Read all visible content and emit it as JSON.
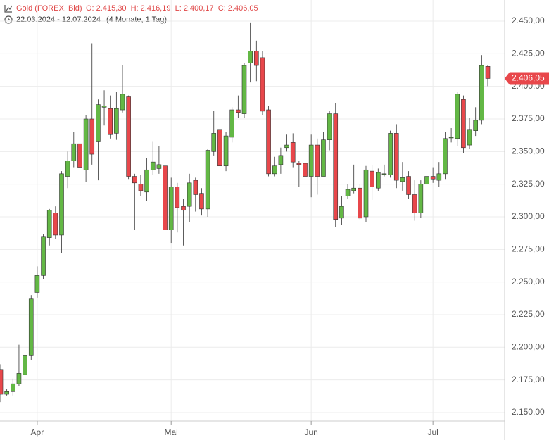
{
  "chart_data": {
    "type": "candlestick",
    "header": {
      "instrument": "Gold (FOREX, Bid)",
      "ohlc": "O: 2.415,30  H: 2.416,19  L: 2.400,17  C: 2.406,05",
      "range": "22.03.2024 - 12.07.2024",
      "duration": "(4 Monate, 1 Tag)"
    },
    "categories": [
      null,
      null,
      null,
      null,
      null,
      null,
      "Apr",
      null,
      null,
      null,
      null,
      null,
      null,
      null,
      null,
      null,
      null,
      null,
      null,
      null,
      null,
      null,
      null,
      null,
      null,
      null,
      null,
      null,
      "Mai",
      null,
      null,
      null,
      null,
      null,
      null,
      null,
      null,
      null,
      null,
      null,
      null,
      null,
      null,
      null,
      null,
      null,
      null,
      null,
      null,
      null,
      null,
      "Jun",
      null,
      null,
      null,
      null,
      null,
      null,
      null,
      null,
      null,
      null,
      null,
      null,
      null,
      null,
      null,
      null,
      null,
      null,
      null,
      "Jul",
      null,
      null,
      null,
      null,
      null,
      null,
      null,
      null,
      null
    ],
    "open": [
      2183,
      2164,
      2166,
      2172,
      2179,
      2194,
      2242,
      2255,
      2284,
      2303,
      2286,
      2331,
      2343,
      2356,
      2336,
      2375,
      2358,
      2384,
      2383,
      2364,
      2382,
      2392,
      2331,
      2325,
      2319,
      2336,
      2337,
      2339,
      2290,
      2323,
      2308,
      2308,
      2328,
      2318,
      2306,
      2350,
      2367,
      2339,
      2361,
      2382,
      2379,
      2418,
      2427,
      2422,
      2382,
      2333,
      2340,
      2353,
      2357,
      2341,
      2341,
      2331,
      2355,
      2331,
      2359,
      2379,
      2299,
      2316,
      2320,
      2322,
      2300,
      2335,
      2322,
      2333,
      2332,
      2364,
      2327,
      2331,
      2317,
      2303,
      2325,
      2331,
      2328,
      2333,
      2361,
      2360,
      2390,
      2355,
      2366,
      2374,
      2415.3
    ],
    "high": [
      2187,
      2168,
      2176,
      2202,
      2201,
      2240,
      2262,
      2287,
      2306,
      2308,
      2335,
      2350,
      2365,
      2370,
      2378,
      2433,
      2390,
      2397,
      2393,
      2396,
      2416,
      2393,
      2333,
      2332,
      2345,
      2358,
      2354,
      2341,
      2330,
      2326,
      2314,
      2333,
      2330,
      2322,
      2352,
      2381,
      2370,
      2365,
      2384,
      2393,
      2418,
      2449,
      2435,
      2427,
      2385,
      2346,
      2353,
      2363,
      2364,
      2343,
      2345,
      2363,
      2360,
      2365,
      2381,
      2387,
      2316,
      2325,
      2340,
      2325,
      2339,
      2340,
      2337,
      2340,
      2366,
      2371,
      2342,
      2335,
      2328,
      2328,
      2339,
      2338,
      2342,
      2365,
      2368,
      2396,
      2393,
      2376,
      2384,
      2424,
      2416.19
    ],
    "low": [
      2158,
      2163,
      2163,
      2170,
      2176,
      2190,
      2238,
      2252,
      2278,
      2283,
      2272,
      2322,
      2338,
      2322,
      2327,
      2340,
      2328,
      2370,
      2360,
      2359,
      2380,
      2329,
      2290,
      2316,
      2312,
      2332,
      2333,
      2288,
      2280,
      2288,
      2278,
      2296,
      2304,
      2301,
      2300,
      2347,
      2334,
      2335,
      2357,
      2376,
      2376,
      2403,
      2404,
      2378,
      2331,
      2331,
      2333,
      2350,
      2338,
      2323,
      2325,
      2315,
      2317,
      2331,
      2351,
      2292,
      2294,
      2314,
      2318,
      2298,
      2296,
      2313,
      2320,
      2331,
      2330,
      2322,
      2320,
      2314,
      2297,
      2299,
      2323,
      2326,
      2323,
      2329,
      2357,
      2354,
      2349,
      2352,
      2362,
      2371,
      2400.17
    ],
    "close": [
      2164,
      2166,
      2172,
      2180,
      2194,
      2237,
      2255,
      2285,
      2305,
      2286,
      2333,
      2343,
      2356,
      2338,
      2375,
      2348,
      2386,
      2385,
      2363,
      2383,
      2394,
      2331,
      2326,
      2320,
      2336,
      2342,
      2340,
      2290,
      2323,
      2307,
      2305,
      2326,
      2317,
      2306,
      2351,
      2364,
      2339,
      2362,
      2382,
      2380,
      2416,
      2427,
      2416,
      2381,
      2333,
      2339,
      2347,
      2355,
      2342,
      2340,
      2331,
      2355,
      2331,
      2359,
      2379,
      2298,
      2308,
      2321,
      2322,
      2299,
      2336,
      2323,
      2334,
      2333,
      2364,
      2328,
      2330,
      2317,
      2303,
      2325,
      2331,
      2329,
      2333,
      2360,
      2361,
      2394,
      2353,
      2367,
      2374,
      2416,
      2406.05
    ],
    "up_color": "#63b845",
    "down_color": "#e8474b",
    "ylim": [
      2143.5,
      2466.2
    ],
    "yticks": [
      {
        "value": 2150,
        "label": "2.150,00"
      },
      {
        "value": 2175,
        "label": "2.175,00"
      },
      {
        "value": 2200,
        "label": "2.200,00"
      },
      {
        "value": 2225,
        "label": "2.225,00"
      },
      {
        "value": 2250,
        "label": "2.250,00"
      },
      {
        "value": 2275,
        "label": "2.275,00"
      },
      {
        "value": 2300,
        "label": "2.300,00"
      },
      {
        "value": 2325,
        "label": "2.325,00"
      },
      {
        "value": 2350,
        "label": "2.350,00"
      },
      {
        "value": 2375,
        "label": "2.375,00"
      },
      {
        "value": 2400,
        "label": "2.400,00"
      },
      {
        "value": 2425,
        "label": "2.425,00"
      },
      {
        "value": 2450,
        "label": "2.450,00"
      }
    ],
    "last_price": {
      "value": 2406.05,
      "label": "2.406,05"
    },
    "grid": true
  }
}
